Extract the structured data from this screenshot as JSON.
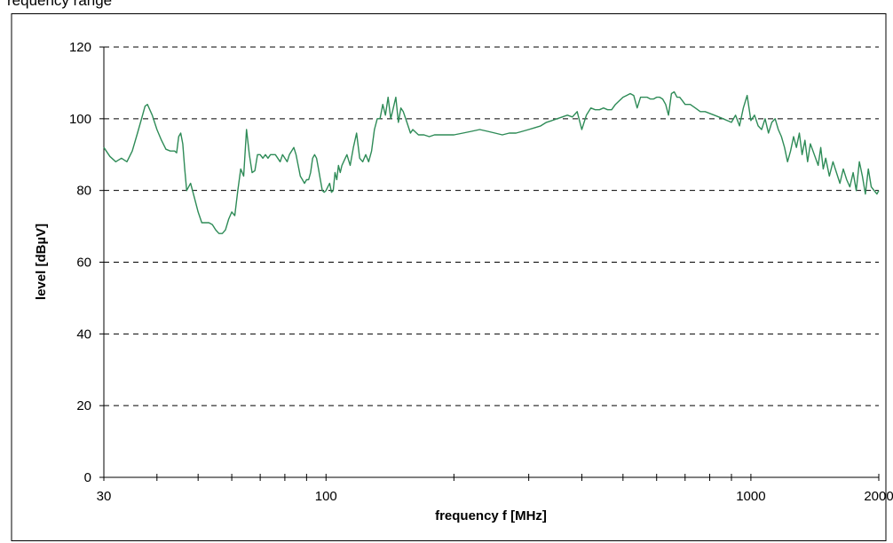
{
  "chart_data": {
    "type": "line",
    "title": "requency range",
    "xlabel": "frequency f [MHz]",
    "ylabel": "level [dBµV]",
    "x_scale": "log",
    "xlim": [
      30,
      2000
    ],
    "ylim": [
      0,
      120
    ],
    "grid": "horizontal dashed",
    "x_tick_labels": [
      {
        "value": 30,
        "label": "30"
      },
      {
        "value": 100,
        "label": "100"
      },
      {
        "value": 1000,
        "label": "1000"
      },
      {
        "value": 2000,
        "label": "2000"
      }
    ],
    "x_minor_ticks": [
      30,
      40,
      50,
      60,
      70,
      80,
      90,
      100,
      200,
      300,
      400,
      500,
      600,
      700,
      800,
      900,
      1000,
      2000
    ],
    "y_ticks": [
      0,
      20,
      40,
      60,
      80,
      100,
      120
    ],
    "colors": {
      "series": "#2e8b57",
      "grid": "#000000"
    },
    "series": [
      {
        "x": [
          30,
          31,
          32,
          33,
          34,
          35,
          36,
          37,
          37.5,
          38,
          39,
          40,
          41,
          42,
          43,
          44,
          44.5,
          45,
          45.5,
          46,
          46.5,
          47,
          48,
          49,
          50,
          51,
          52,
          53,
          54,
          55,
          56,
          57,
          58,
          59,
          60,
          61,
          62,
          63,
          64,
          65,
          66,
          67,
          68,
          69,
          70,
          71,
          72,
          73,
          74,
          75,
          76,
          77,
          78,
          79,
          80,
          81,
          82,
          83,
          84,
          85,
          86,
          87,
          88,
          89,
          90,
          91,
          92,
          93,
          94,
          95,
          96,
          97,
          98,
          99,
          100,
          101,
          102,
          103,
          104,
          105,
          106,
          107,
          108,
          109,
          110,
          112,
          114,
          116,
          118,
          120,
          122,
          124,
          126,
          128,
          130,
          132,
          134,
          136,
          138,
          140,
          142,
          144,
          146,
          148,
          150,
          152,
          155,
          158,
          160,
          165,
          170,
          175,
          180,
          190,
          200,
          210,
          220,
          230,
          240,
          250,
          260,
          270,
          280,
          290,
          300,
          310,
          320,
          330,
          340,
          350,
          360,
          370,
          380,
          390,
          400,
          410,
          420,
          430,
          440,
          450,
          460,
          470,
          480,
          490,
          500,
          510,
          520,
          530,
          540,
          550,
          560,
          570,
          580,
          590,
          600,
          610,
          620,
          630,
          640,
          650,
          660,
          670,
          680,
          690,
          700,
          720,
          740,
          760,
          780,
          800,
          820,
          840,
          860,
          880,
          900,
          920,
          940,
          960,
          980,
          1000,
          1020,
          1040,
          1060,
          1080,
          1100,
          1120,
          1140,
          1160,
          1180,
          1200,
          1220,
          1240,
          1260,
          1280,
          1300,
          1320,
          1340,
          1360,
          1380,
          1400,
          1420,
          1440,
          1460,
          1480,
          1500,
          1530,
          1560,
          1590,
          1620,
          1650,
          1680,
          1710,
          1740,
          1770,
          1800,
          1830,
          1860,
          1890,
          1920,
          1950,
          1980,
          2000
        ],
        "y": [
          92,
          89.5,
          88,
          89,
          88,
          91,
          96,
          101,
          103.5,
          104,
          101,
          97,
          94,
          91.5,
          91,
          91,
          90.5,
          95,
          96,
          93,
          86,
          80,
          82,
          78,
          74,
          71,
          71,
          71,
          70.5,
          69,
          68,
          68,
          69,
          72,
          74,
          73,
          80,
          86,
          84,
          97,
          90,
          85,
          85.5,
          90,
          90,
          89,
          90,
          89,
          90,
          90,
          90,
          89,
          88,
          90,
          89,
          88,
          90,
          91,
          92,
          90,
          87,
          84,
          83,
          82,
          83,
          83,
          85,
          89,
          90,
          89,
          86,
          83,
          80,
          79.5,
          80,
          81,
          82,
          79.5,
          80,
          85,
          83,
          87,
          85,
          87,
          88,
          90,
          87,
          92,
          96,
          89,
          88,
          90,
          88,
          91,
          97,
          100,
          100,
          104,
          101,
          106,
          100,
          103,
          106,
          99,
          103,
          102,
          99,
          96,
          97,
          95.5,
          95.5,
          95,
          95.5,
          95.5,
          95.5,
          96,
          96.5,
          97,
          96.5,
          96,
          95.5,
          96,
          96,
          96.5,
          97,
          97.5,
          98,
          99,
          99.5,
          100,
          100.5,
          101,
          100.5,
          102,
          97,
          101,
          103,
          102.5,
          102.5,
          103,
          102.5,
          102.5,
          104,
          105,
          106,
          106.5,
          107,
          106.5,
          103,
          106,
          106,
          106,
          105.5,
          105.5,
          106,
          106,
          105.5,
          104,
          101,
          107,
          107.5,
          106,
          106,
          105,
          104,
          104,
          103,
          102,
          102,
          101.5,
          101,
          100.5,
          100,
          99.5,
          99,
          101,
          98,
          103,
          106.5,
          99.5,
          101,
          98,
          97,
          100,
          96,
          99,
          100,
          97,
          95,
          92,
          88,
          91,
          95,
          92,
          96,
          90,
          94,
          88,
          93,
          91,
          89,
          87,
          92,
          86,
          89,
          84,
          88,
          85,
          82,
          86,
          83,
          81,
          85,
          80,
          88,
          84,
          79,
          86,
          81,
          80,
          79,
          80
        ]
      }
    ]
  }
}
